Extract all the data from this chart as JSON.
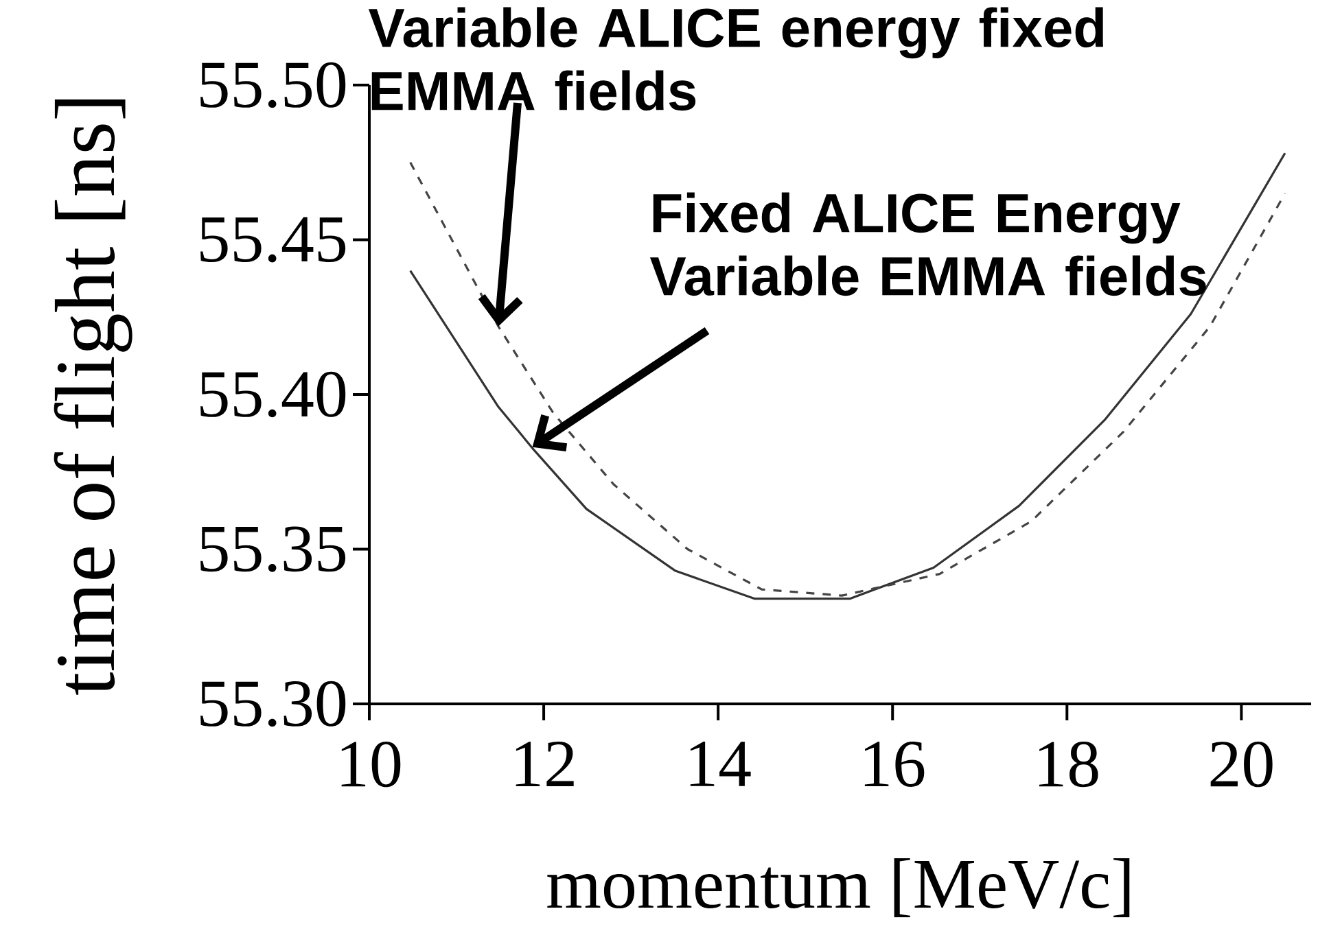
{
  "chart_data": {
    "type": "line",
    "xlabel": "momentum [MeV/c]",
    "ylabel": "time of flight [ns]",
    "xlim": [
      10,
      20.8
    ],
    "ylim": [
      55.3,
      55.5
    ],
    "xticks": [
      10,
      12,
      14,
      16,
      18,
      20
    ],
    "yticks": [
      {
        "value": 55.3,
        "label": "55.30"
      },
      {
        "value": 55.35,
        "label": "55.35"
      },
      {
        "value": 55.4,
        "label": "55.40"
      },
      {
        "value": 55.45,
        "label": "55.45"
      },
      {
        "value": 55.5,
        "label": "55.50"
      }
    ],
    "grid": false,
    "series": [
      {
        "color": "#333333",
        "line_style": "solid",
        "x": [
          10.47,
          11.48,
          11.89,
          12.49,
          13.51,
          14.42,
          15.51,
          16.47,
          17.45,
          18.44,
          19.42,
          20.5
        ],
        "values": [
          55.44,
          55.396,
          55.382,
          55.363,
          55.343,
          55.334,
          55.334,
          55.344,
          55.364,
          55.392,
          55.426,
          55.478
        ]
      },
      {
        "color": "#444444",
        "line_style": "dashed",
        "x": [
          10.47,
          11.48,
          12.11,
          12.8,
          13.65,
          14.5,
          15.42,
          16.54,
          17.59,
          18.65,
          19.64,
          20.5
        ],
        "values": [
          55.475,
          55.422,
          55.394,
          55.371,
          55.35,
          55.337,
          55.335,
          55.342,
          55.359,
          55.388,
          55.422,
          55.465
        ]
      }
    ],
    "annotations": [
      {
        "text": "Variable ALICE energy fixed EMMA fields",
        "x": 11.48,
        "y": 55.422
      },
      {
        "text": "Fixed ALICE Energy Variable EMMA fields",
        "x": 11.87,
        "y": 55.383
      }
    ]
  }
}
